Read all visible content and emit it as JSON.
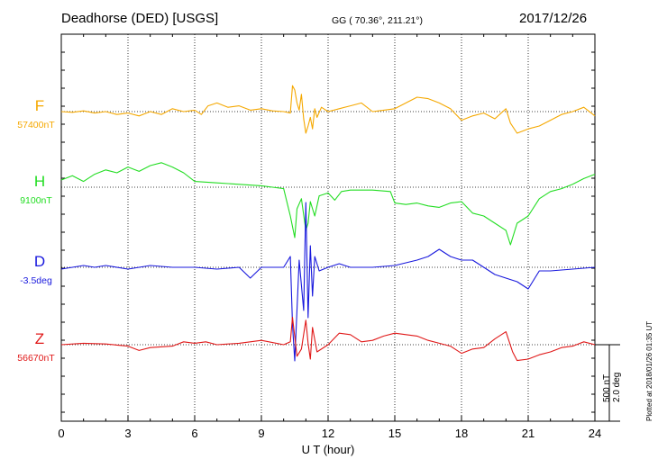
{
  "header": {
    "station": "Deadhorse (DED)  [USGS]",
    "coords": "GG ( 70.36°, 211.21°)",
    "date": "2017/12/26"
  },
  "footer": {
    "plotted": "Plotted at 2018/01/26 01:35 UT",
    "scale_text_1": "500 nT",
    "scale_text_2": "2.0 deg"
  },
  "chart_data": {
    "type": "line",
    "xlabel": "U T (hour)",
    "xlim": [
      0,
      24
    ],
    "xticks": [
      "0",
      "3",
      "6",
      "9",
      "12",
      "15",
      "18",
      "21",
      "24"
    ],
    "grid": true,
    "scale": {
      "nT": 500,
      "deg": 2.0
    },
    "series": [
      {
        "name": "F",
        "baseline": "57400nT",
        "color": "#f5a800",
        "unit": "nT",
        "points": [
          [
            0,
            0
          ],
          [
            0.5,
            -5
          ],
          [
            1,
            5
          ],
          [
            1.5,
            -10
          ],
          [
            2,
            0
          ],
          [
            2.5,
            -20
          ],
          [
            3,
            -10
          ],
          [
            3.5,
            -30
          ],
          [
            4,
            0
          ],
          [
            4.5,
            -20
          ],
          [
            5,
            20
          ],
          [
            5.5,
            0
          ],
          [
            6,
            10
          ],
          [
            6.3,
            -20
          ],
          [
            6.6,
            40
          ],
          [
            7,
            60
          ],
          [
            7.5,
            30
          ],
          [
            8,
            40
          ],
          [
            8.5,
            10
          ],
          [
            9,
            20
          ],
          [
            9.5,
            5
          ],
          [
            10,
            0
          ],
          [
            10.3,
            -10
          ],
          [
            10.4,
            180
          ],
          [
            10.5,
            150
          ],
          [
            10.6,
            60
          ],
          [
            10.7,
            10
          ],
          [
            10.8,
            120
          ],
          [
            10.9,
            -50
          ],
          [
            11,
            -150
          ],
          [
            11.1,
            -100
          ],
          [
            11.2,
            -40
          ],
          [
            11.3,
            -120
          ],
          [
            11.4,
            20
          ],
          [
            11.5,
            -40
          ],
          [
            11.7,
            30
          ],
          [
            12,
            0
          ],
          [
            12.5,
            20
          ],
          [
            13,
            40
          ],
          [
            13.5,
            60
          ],
          [
            14,
            0
          ],
          [
            14.5,
            10
          ],
          [
            15,
            20
          ],
          [
            15.5,
            60
          ],
          [
            16,
            100
          ],
          [
            16.5,
            90
          ],
          [
            17,
            60
          ],
          [
            17.5,
            20
          ],
          [
            18,
            -60
          ],
          [
            18.5,
            -30
          ],
          [
            19,
            -10
          ],
          [
            19.5,
            -50
          ],
          [
            20,
            20
          ],
          [
            20.2,
            -80
          ],
          [
            20.5,
            -150
          ],
          [
            21,
            -120
          ],
          [
            21.5,
            -100
          ],
          [
            22,
            -60
          ],
          [
            22.5,
            -20
          ],
          [
            23,
            0
          ],
          [
            23.5,
            30
          ],
          [
            24,
            -30
          ]
        ]
      },
      {
        "name": "H",
        "baseline": "9100nT",
        "color": "#22dd22",
        "unit": "nT",
        "points": [
          [
            0,
            50
          ],
          [
            0.5,
            80
          ],
          [
            1,
            40
          ],
          [
            1.5,
            90
          ],
          [
            2,
            120
          ],
          [
            2.5,
            100
          ],
          [
            3,
            140
          ],
          [
            3.5,
            110
          ],
          [
            4,
            150
          ],
          [
            4.5,
            170
          ],
          [
            5,
            140
          ],
          [
            5.5,
            100
          ],
          [
            6,
            40
          ],
          [
            7,
            30
          ],
          [
            8,
            20
          ],
          [
            9,
            10
          ],
          [
            9.5,
            0
          ],
          [
            10,
            -10
          ],
          [
            10.3,
            -200
          ],
          [
            10.5,
            -350
          ],
          [
            10.6,
            -150
          ],
          [
            10.8,
            -80
          ],
          [
            11,
            -300
          ],
          [
            11.1,
            -250
          ],
          [
            11.2,
            -100
          ],
          [
            11.4,
            -200
          ],
          [
            11.6,
            -60
          ],
          [
            11.8,
            -50
          ],
          [
            12,
            -40
          ],
          [
            12.3,
            -90
          ],
          [
            12.6,
            -30
          ],
          [
            13,
            -20
          ],
          [
            14,
            -20
          ],
          [
            14.8,
            -30
          ],
          [
            15,
            -110
          ],
          [
            15.5,
            -120
          ],
          [
            16,
            -110
          ],
          [
            16.5,
            -130
          ],
          [
            17,
            -140
          ],
          [
            17.5,
            -110
          ],
          [
            18,
            -100
          ],
          [
            18.5,
            -180
          ],
          [
            19,
            -200
          ],
          [
            19.5,
            -250
          ],
          [
            20,
            -300
          ],
          [
            20.2,
            -400
          ],
          [
            20.5,
            -250
          ],
          [
            21,
            -200
          ],
          [
            21.5,
            -80
          ],
          [
            22,
            -30
          ],
          [
            22.5,
            -10
          ],
          [
            23,
            20
          ],
          [
            23.5,
            60
          ],
          [
            24,
            90
          ]
        ]
      },
      {
        "name": "D",
        "baseline": "-3.5deg",
        "color": "#1818dd",
        "unit": "deg",
        "points": [
          [
            0,
            -0.05
          ],
          [
            0.5,
            0
          ],
          [
            1,
            0.05
          ],
          [
            1.5,
            0
          ],
          [
            2,
            0.05
          ],
          [
            3,
            -0.05
          ],
          [
            4,
            0.05
          ],
          [
            5,
            0
          ],
          [
            6,
            0
          ],
          [
            7,
            -0.05
          ],
          [
            8,
            0
          ],
          [
            8.5,
            -0.3
          ],
          [
            9,
            0
          ],
          [
            10,
            0
          ],
          [
            10.3,
            0.3
          ],
          [
            10.4,
            -1.6
          ],
          [
            10.5,
            -2.6
          ],
          [
            10.7,
            0.2
          ],
          [
            10.8,
            -0.5
          ],
          [
            10.9,
            -1.2
          ],
          [
            11,
            1.8
          ],
          [
            11.1,
            -1.4
          ],
          [
            11.2,
            0.6
          ],
          [
            11.3,
            -0.8
          ],
          [
            11.4,
            0.3
          ],
          [
            11.6,
            -0.1
          ],
          [
            12,
            0
          ],
          [
            12.5,
            0.1
          ],
          [
            13,
            0
          ],
          [
            14,
            0
          ],
          [
            15,
            0.05
          ],
          [
            16,
            0.2
          ],
          [
            16.5,
            0.3
          ],
          [
            17,
            0.5
          ],
          [
            17.5,
            0.3
          ],
          [
            18,
            0.2
          ],
          [
            18.5,
            0.2
          ],
          [
            19,
            0
          ],
          [
            19.5,
            -0.2
          ],
          [
            20,
            -0.3
          ],
          [
            20.5,
            -0.4
          ],
          [
            21,
            -0.6
          ],
          [
            21.5,
            -0.1
          ],
          [
            22,
            -0.1
          ],
          [
            23,
            -0.05
          ],
          [
            24,
            0
          ]
        ]
      },
      {
        "name": "Z",
        "baseline": "56670nT",
        "color": "#e01818",
        "unit": "nT",
        "points": [
          [
            0,
            0
          ],
          [
            1,
            10
          ],
          [
            2,
            5
          ],
          [
            3,
            -10
          ],
          [
            3.5,
            -40
          ],
          [
            4,
            -20
          ],
          [
            5,
            -10
          ],
          [
            5.5,
            20
          ],
          [
            6,
            10
          ],
          [
            6.5,
            20
          ],
          [
            7,
            0
          ],
          [
            8,
            10
          ],
          [
            9,
            30
          ],
          [
            10,
            0
          ],
          [
            10.3,
            20
          ],
          [
            10.4,
            190
          ],
          [
            10.6,
            -80
          ],
          [
            10.8,
            -30
          ],
          [
            11,
            170
          ],
          [
            11.1,
            10
          ],
          [
            11.2,
            -100
          ],
          [
            11.3,
            120
          ],
          [
            11.5,
            -50
          ],
          [
            12,
            0
          ],
          [
            12.5,
            80
          ],
          [
            13,
            70
          ],
          [
            13.5,
            20
          ],
          [
            14,
            30
          ],
          [
            14.5,
            60
          ],
          [
            15,
            80
          ],
          [
            16,
            60
          ],
          [
            16.5,
            30
          ],
          [
            17,
            10
          ],
          [
            17.5,
            -10
          ],
          [
            18,
            -60
          ],
          [
            18.5,
            -30
          ],
          [
            19,
            -20
          ],
          [
            19.5,
            40
          ],
          [
            20,
            90
          ],
          [
            20.3,
            -50
          ],
          [
            20.5,
            -110
          ],
          [
            21,
            -100
          ],
          [
            21.5,
            -70
          ],
          [
            22,
            -50
          ],
          [
            22.5,
            -20
          ],
          [
            23,
            -10
          ],
          [
            23.5,
            20
          ],
          [
            24,
            0
          ]
        ]
      }
    ]
  }
}
